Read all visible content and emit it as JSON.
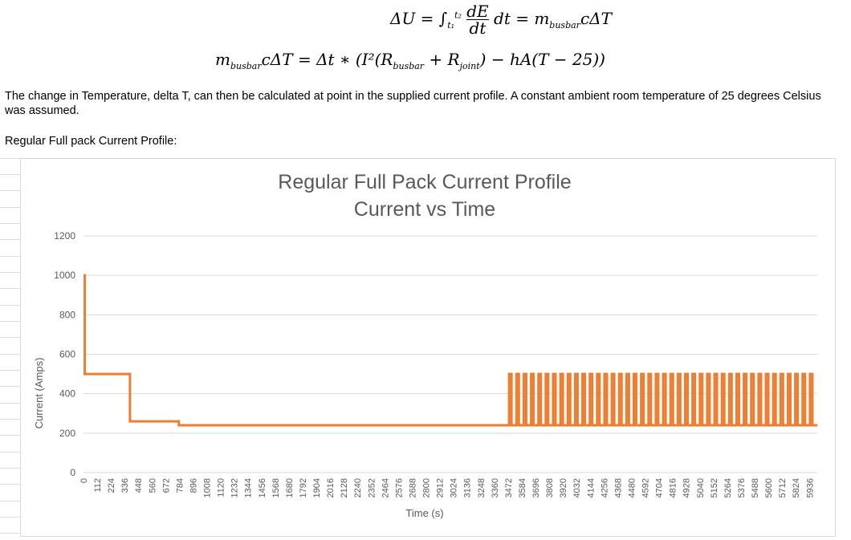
{
  "equations": {
    "line1": "ΔU = ∫ₜ₁ᵗ² (dE/dt) dt = m_busbar cΔT",
    "line2": "m_busbar cΔT = Δt ∗ (I²(R_busbar + R_joint) − hA(T − 25))"
  },
  "text": {
    "paragraph": "The change in Temperature, delta T, can then be calculated at point in the supplied current profile. A constant ambient room temperature of 25 degrees Celsius was assumed.",
    "caption": "Regular Full pack Current Profile:"
  },
  "colors": {
    "series": "#ED7D31",
    "grid": "#d9d9d9",
    "axis_text": "#595959"
  },
  "chart_data": {
    "type": "line",
    "title": "Regular Full Pack Current Profile",
    "subtitle": "Current vs Time",
    "xlabel": "Time (s)",
    "ylabel": "Current (Amps)",
    "ylim": [
      0,
      1200
    ],
    "yticks": [
      0,
      200,
      400,
      600,
      800,
      1000,
      1200
    ],
    "xlim": [
      0,
      6000
    ],
    "xticks": [
      0,
      112,
      224,
      336,
      448,
      560,
      672,
      784,
      896,
      1008,
      1120,
      1232,
      1344,
      1456,
      1568,
      1680,
      1792,
      1904,
      2016,
      2128,
      2240,
      2352,
      2464,
      2576,
      2688,
      2800,
      2912,
      3024,
      3136,
      3248,
      3360,
      3472,
      3584,
      3696,
      3808,
      3920,
      4032,
      4144,
      4256,
      4368,
      4480,
      4592,
      4704,
      4816,
      4928,
      5040,
      5152,
      5264,
      5376,
      5488,
      5600,
      5712,
      5824,
      5936
    ],
    "series": [
      {
        "name": "Current",
        "segments": [
          {
            "t_start": 0,
            "t_end": 10,
            "current": 1000
          },
          {
            "t_start": 10,
            "t_end": 380,
            "current": 500
          },
          {
            "t_start": 380,
            "t_end": 780,
            "current": 260
          },
          {
            "t_start": 780,
            "t_end": 3480,
            "current": 240
          }
        ],
        "pulses": {
          "t_start": 3480,
          "t_end": 6000,
          "period": 60,
          "high": 500,
          "low": 240,
          "pulse_width": 20
        }
      }
    ]
  }
}
